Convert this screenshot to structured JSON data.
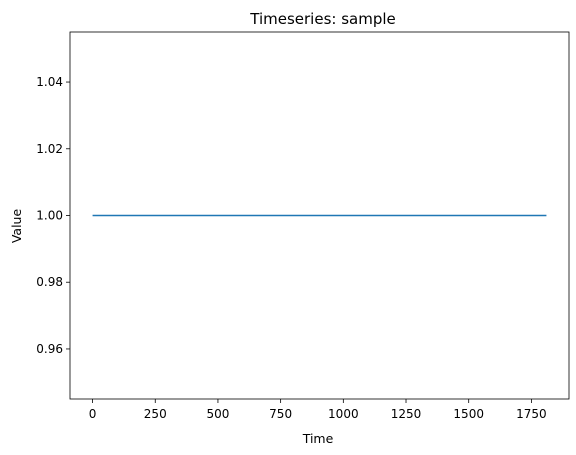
{
  "chart_data": {
    "type": "line",
    "title": "Timeseries: sample",
    "xlabel": "Time",
    "ylabel": "Value",
    "xlim": [
      -90,
      1900
    ],
    "ylim": [
      0.945,
      1.055
    ],
    "xticks": [
      0,
      250,
      500,
      750,
      1000,
      1250,
      1500,
      1750
    ],
    "xtick_labels": [
      "0",
      "250",
      "500",
      "750",
      "1000",
      "1250",
      "1500",
      "1750"
    ],
    "yticks": [
      0.96,
      0.98,
      1.0,
      1.02,
      1.04
    ],
    "ytick_labels": [
      "0.96",
      "0.98",
      "1.00",
      "1.02",
      "1.04"
    ],
    "grid": false,
    "series": [
      {
        "color": "#1f77b4",
        "x": [
          0,
          1810
        ],
        "y": [
          1.0,
          1.0
        ]
      }
    ]
  }
}
